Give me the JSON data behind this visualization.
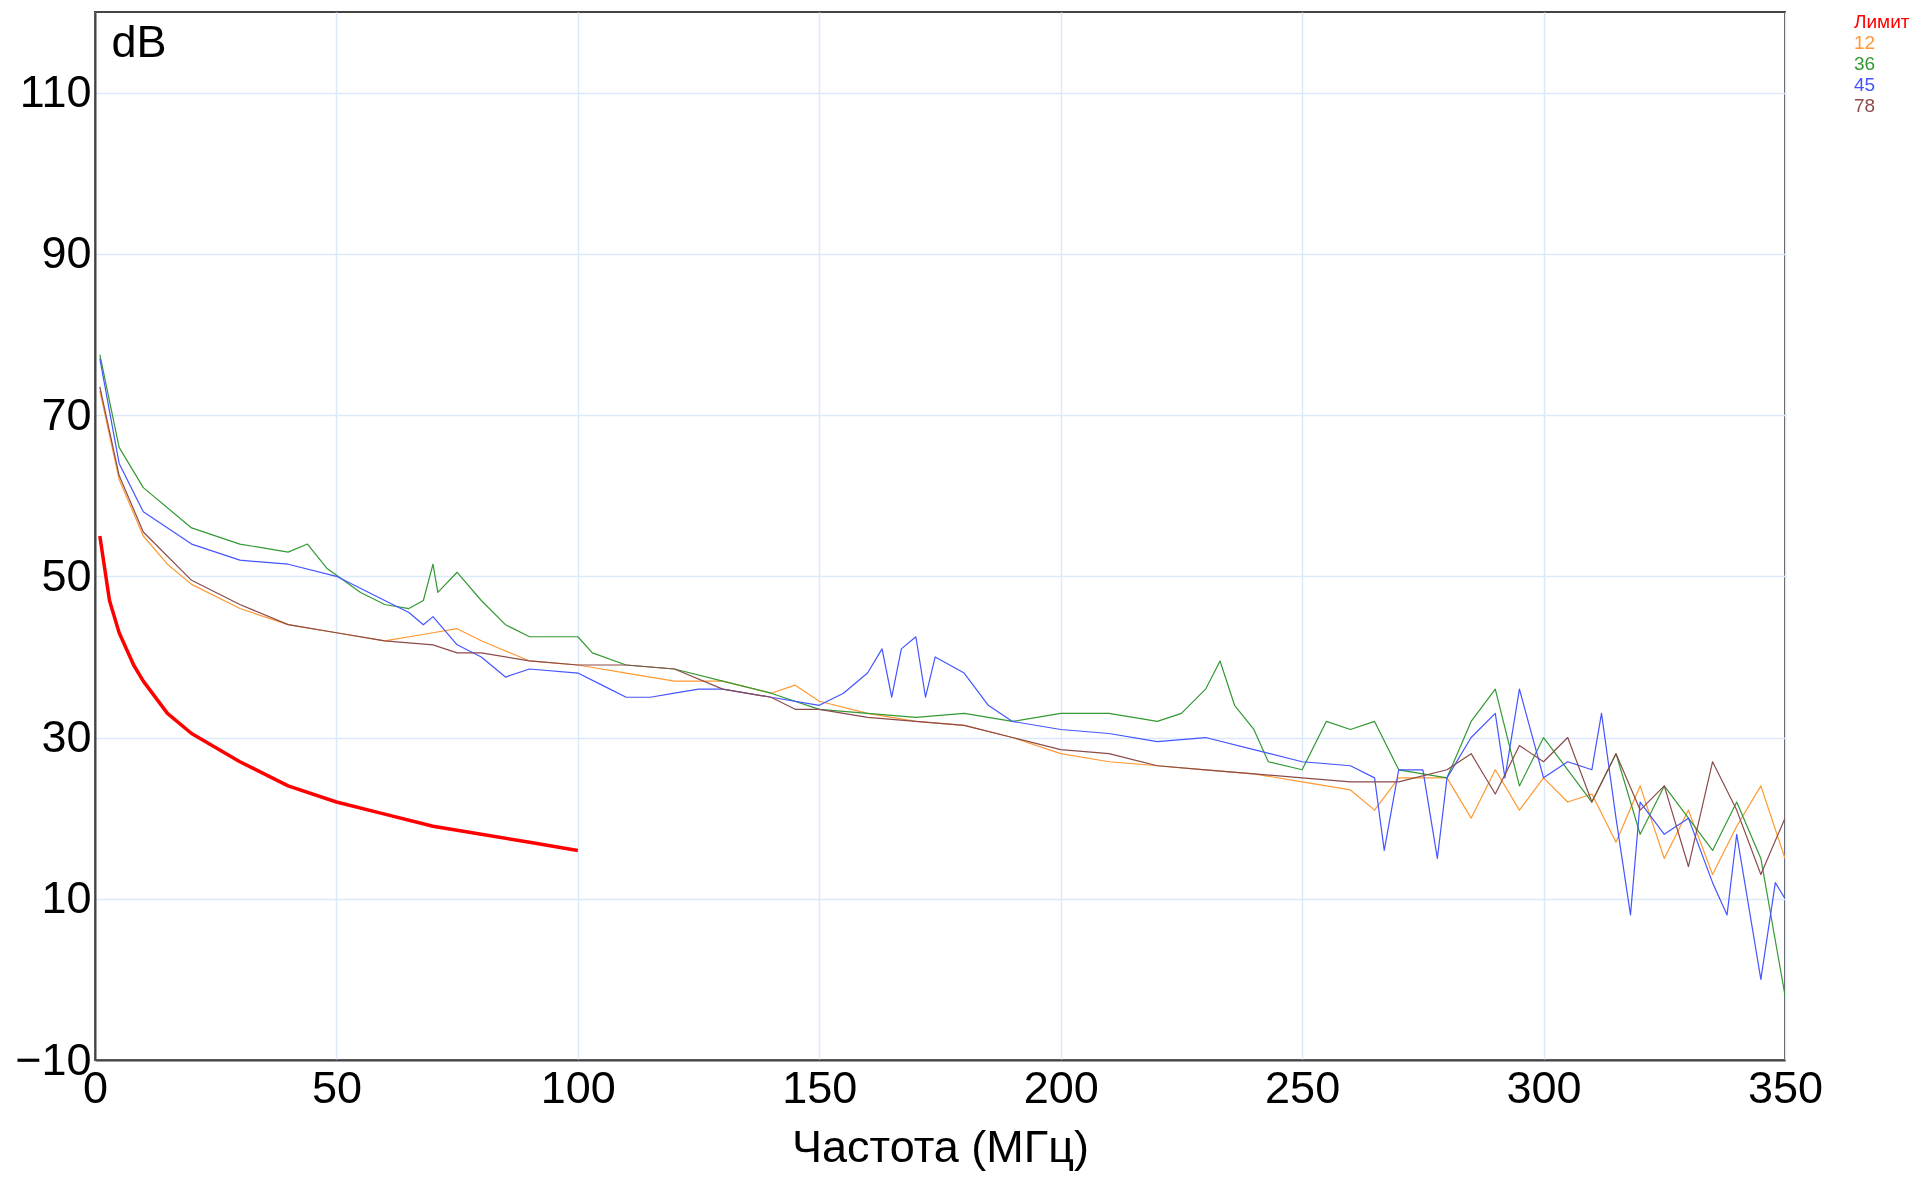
{
  "chart_data": {
    "type": "line",
    "ylabel": "dB",
    "xlabel": "Частота  (МГц)",
    "xlim": [
      0,
      350
    ],
    "xticks": [
      0,
      50,
      100,
      150,
      200,
      250,
      300,
      350
    ],
    "ylim": [
      -10,
      120
    ],
    "yticks": [
      -10,
      10,
      30,
      50,
      70,
      90,
      110
    ],
    "grid": true,
    "legend": "top right",
    "series": [
      {
        "name": "Лимит",
        "color": "#ff0000",
        "x": [
          1,
          3,
          5,
          8,
          10,
          15,
          20,
          30,
          40,
          50,
          60,
          70,
          80,
          90,
          100
        ],
        "values": [
          55,
          47,
          43,
          39,
          37,
          33,
          30.5,
          27,
          24,
          22,
          20.5,
          19,
          18,
          17,
          16
        ]
      },
      {
        "name": "12",
        "color": "#ff9933",
        "x": [
          1,
          5,
          10,
          15,
          20,
          30,
          40,
          50,
          60,
          70,
          75,
          80,
          90,
          100,
          110,
          120,
          130,
          140,
          145,
          150,
          160,
          170,
          180,
          190,
          200,
          210,
          220,
          230,
          240,
          250,
          260,
          265,
          270,
          280,
          285,
          290,
          295,
          300,
          305,
          310,
          315,
          320,
          325,
          330,
          335,
          340,
          345,
          350
        ],
        "values": [
          73,
          62,
          55,
          51.5,
          49,
          46,
          44,
          43,
          42,
          43,
          43.5,
          42,
          39.5,
          39,
          38,
          37,
          37,
          35.5,
          36.5,
          34.5,
          33,
          32,
          31.5,
          30,
          28,
          27,
          26.5,
          26,
          25.5,
          24.5,
          23.5,
          21,
          25,
          25,
          20,
          26,
          21,
          25,
          22,
          23,
          17,
          24,
          15,
          21,
          13,
          19,
          24,
          15
        ]
      },
      {
        "name": "36",
        "color": "#339933",
        "x": [
          1,
          5,
          10,
          20,
          30,
          40,
          44,
          48,
          55,
          60,
          65,
          68,
          70,
          71,
          75,
          80,
          85,
          90,
          100,
          103,
          110,
          120,
          130,
          140,
          150,
          160,
          170,
          180,
          190,
          200,
          210,
          220,
          225,
          230,
          233,
          236,
          240,
          243,
          250,
          255,
          260,
          265,
          270,
          280,
          285,
          290,
          295,
          300,
          305,
          310,
          315,
          320,
          325,
          330,
          335,
          340,
          345,
          350
        ],
        "values": [
          77.5,
          66,
          61,
          56,
          54,
          53,
          54,
          51,
          48,
          46.5,
          46,
          47,
          51.5,
          48,
          50.5,
          47,
          44,
          42.5,
          42.5,
          40.5,
          39,
          38.5,
          37,
          35.5,
          33.5,
          33,
          32.5,
          33,
          32,
          33,
          33,
          32,
          33,
          36,
          39.5,
          34,
          31,
          27,
          26,
          32,
          31,
          32,
          26,
          25,
          32,
          36,
          24,
          30,
          26,
          22,
          28,
          18,
          24,
          20,
          16,
          22,
          15,
          -2
        ]
      },
      {
        "name": "45",
        "color": "#4455ff",
        "x": [
          1,
          5,
          10,
          20,
          30,
          40,
          50,
          60,
          65,
          68,
          70,
          75,
          80,
          85,
          90,
          100,
          105,
          110,
          115,
          120,
          125,
          130,
          140,
          150,
          155,
          160,
          163,
          165,
          167,
          170,
          172,
          174,
          180,
          185,
          190,
          200,
          210,
          220,
          230,
          240,
          250,
          260,
          265,
          267,
          270,
          275,
          278,
          280,
          285,
          290,
          292,
          295,
          300,
          305,
          310,
          312,
          315,
          318,
          320,
          325,
          330,
          335,
          338,
          340,
          345,
          348,
          350
        ],
        "values": [
          77,
          64,
          58,
          54,
          52,
          51.5,
          50,
          47,
          45.5,
          44,
          45,
          41.5,
          40,
          37.5,
          38.5,
          38,
          36.5,
          35,
          35,
          35.5,
          36,
          36,
          35,
          34,
          35.5,
          38,
          41,
          35,
          41,
          42.5,
          35,
          40,
          38,
          34,
          32,
          31,
          30.5,
          29.5,
          30,
          28.5,
          27,
          26.5,
          25,
          16,
          26,
          26,
          15,
          25,
          30,
          33,
          25,
          36,
          25,
          27,
          26,
          33,
          20,
          8,
          22,
          18,
          20,
          12,
          8,
          18,
          0,
          12,
          10
        ]
      },
      {
        "name": "78",
        "color": "#8b4b4b",
        "x": [
          1,
          5,
          10,
          20,
          30,
          40,
          50,
          60,
          70,
          75,
          80,
          90,
          100,
          110,
          120,
          130,
          140,
          145,
          150,
          160,
          170,
          180,
          190,
          200,
          210,
          220,
          230,
          240,
          250,
          260,
          270,
          280,
          285,
          290,
          295,
          300,
          305,
          310,
          315,
          320,
          325,
          330,
          335,
          340,
          345,
          350
        ],
        "values": [
          73.5,
          62.5,
          55.5,
          49.5,
          46.5,
          44,
          43,
          42,
          41.5,
          40.5,
          40.5,
          39.5,
          39,
          39,
          38.5,
          36,
          35,
          33.5,
          33.5,
          32.5,
          32,
          31.5,
          30,
          28.5,
          28,
          26.5,
          26,
          25.5,
          25,
          24.5,
          24.5,
          26,
          28,
          23,
          29,
          27,
          30,
          22,
          28,
          21,
          24,
          14,
          27,
          21,
          13,
          20
        ]
      }
    ]
  }
}
